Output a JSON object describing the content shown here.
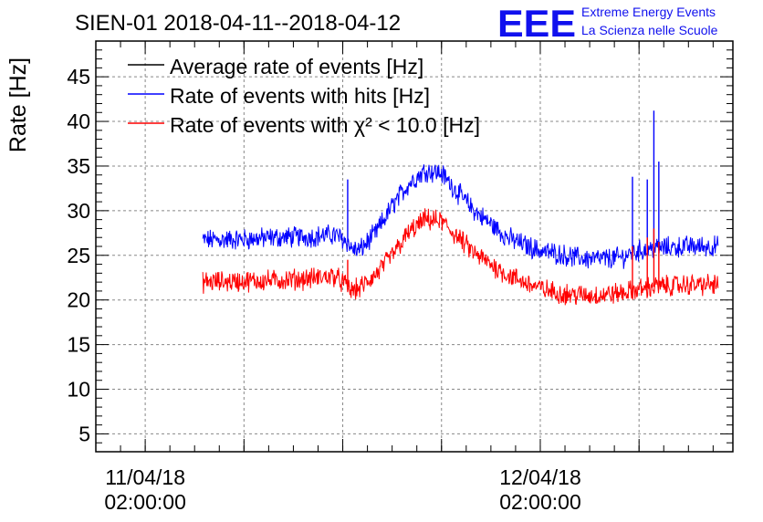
{
  "logo": {
    "letters": "EEE",
    "line1": "Extreme Energy Events",
    "line2": "La Scienza nelle Scuole",
    "color": "#1010ee"
  },
  "chart_data": {
    "type": "line",
    "title": "SIEN-01 2018-04-11--2018-04-12",
    "ylabel": "Rate [Hz]",
    "xlabel": "",
    "ylim": [
      3,
      49
    ],
    "xlim_hours": [
      -1.0,
      37.7
    ],
    "y_ticks": [
      5,
      10,
      15,
      20,
      25,
      30,
      35,
      40,
      45
    ],
    "x_ticks": [
      {
        "hour": 2,
        "date": "11/04/18",
        "time": "02:00:00"
      },
      {
        "hour": 26,
        "date": "12/04/18",
        "time": "02:00:00"
      }
    ],
    "grid": true,
    "legend_position": "top-left",
    "series": [
      {
        "name": "Average rate of events [Hz]",
        "color": "#000000",
        "x_hours": [],
        "values": []
      },
      {
        "name": "Rate of events with hits [Hz]",
        "color": "#0000ff",
        "x_hours": [
          5.5,
          8.0,
          10.0,
          12.0,
          13.5,
          14.3,
          14.5,
          15.0,
          16.0,
          17.0,
          18.0,
          19.0,
          20.0,
          21.0,
          22.0,
          23.0,
          24.0,
          25.0,
          26.0,
          27.0,
          28.0,
          29.0,
          30.0,
          31.0,
          31.5,
          32.0,
          33.0,
          34.0,
          35.0,
          36.0,
          36.8
        ],
        "values": [
          26.7,
          26.8,
          27.0,
          27.1,
          27.3,
          26.5,
          25.8,
          25.5,
          27.5,
          30.5,
          33.0,
          34.5,
          34.2,
          32.0,
          30.0,
          28.5,
          27.0,
          26.2,
          25.5,
          25.2,
          24.8,
          24.6,
          24.6,
          24.8,
          25.2,
          25.5,
          25.8,
          25.9,
          26.0,
          26.0,
          26.0
        ],
        "spikes": [
          {
            "x_hours": 14.3,
            "value": 33.5
          },
          {
            "x_hours": 31.6,
            "value": 33.8
          },
          {
            "x_hours": 32.5,
            "value": 33.5
          },
          {
            "x_hours": 32.9,
            "value": 41.2
          },
          {
            "x_hours": 33.2,
            "value": 35.5
          }
        ]
      },
      {
        "name": "Rate of events with χ² < 10.0 [Hz]",
        "color": "#ff0000",
        "x_hours": [
          5.5,
          8.0,
          10.0,
          12.0,
          13.5,
          14.3,
          14.5,
          15.0,
          16.0,
          17.0,
          18.0,
          19.0,
          20.0,
          21.0,
          22.0,
          23.0,
          24.0,
          25.0,
          26.0,
          27.0,
          28.0,
          29.0,
          30.0,
          31.0,
          31.5,
          32.0,
          33.0,
          34.0,
          35.0,
          36.0,
          36.8
        ],
        "values": [
          22.0,
          22.1,
          22.2,
          22.4,
          22.7,
          21.5,
          21.0,
          21.3,
          22.8,
          25.0,
          27.5,
          29.0,
          28.8,
          27.0,
          25.2,
          24.0,
          22.8,
          22.0,
          21.3,
          20.8,
          20.6,
          20.5,
          20.6,
          20.8,
          21.0,
          21.2,
          21.5,
          21.6,
          21.7,
          21.7,
          21.7
        ],
        "spikes": [
          {
            "x_hours": 14.3,
            "value": 24.5
          },
          {
            "x_hours": 31.6,
            "value": 26.0
          },
          {
            "x_hours": 32.5,
            "value": 27.0
          },
          {
            "x_hours": 32.9,
            "value": 28.0
          },
          {
            "x_hours": 33.2,
            "value": 26.5
          }
        ]
      }
    ]
  }
}
